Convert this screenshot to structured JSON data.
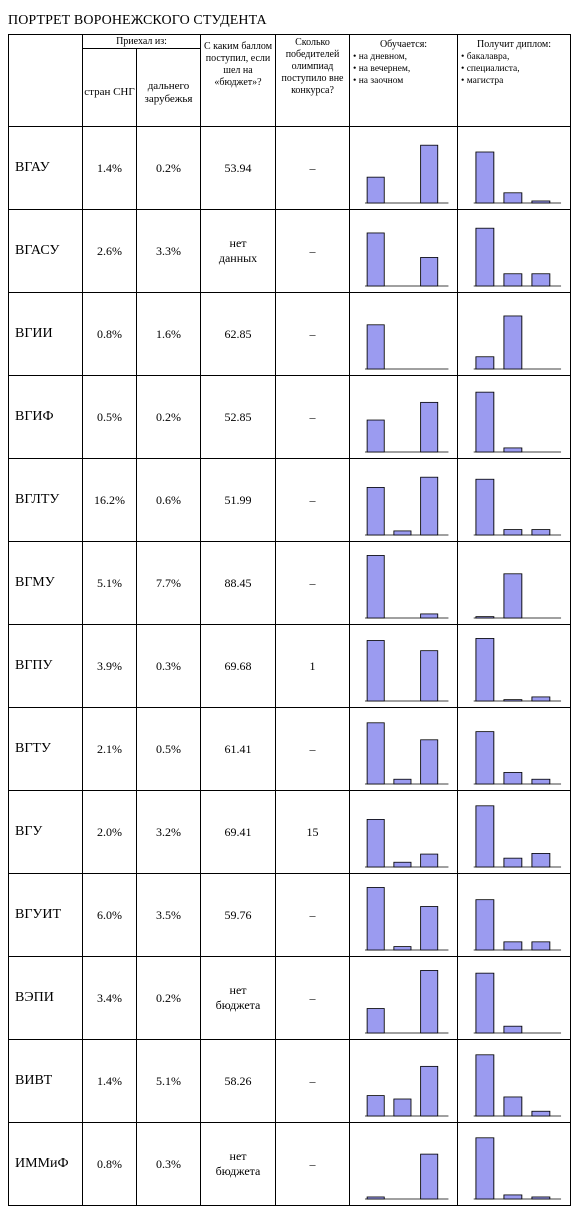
{
  "title": "ПОРТРЕТ ВОРОНЕЖСКОГО СТУДЕНТА",
  "headers": {
    "arrived_from": "Приехал из:",
    "cis": "стран СНГ",
    "far_abroad": "дальнего зарубежья",
    "score": "С каким баллом поступил, если шел на «бюджет»?",
    "olympiad": "Сколько победителей олимпиад поступило вне конкурса?",
    "study_form": {
      "caption": "Обучается:",
      "items": [
        "• на дневном,",
        "• на вечернем,",
        "• на заочном"
      ]
    },
    "diploma": {
      "caption": "Получит диплом:",
      "items": [
        "• бакалавра,",
        "• специалиста,",
        "• магистра"
      ]
    }
  },
  "colors": {
    "bar_fill": "#9b9bf0",
    "bar_stroke": "#000000"
  },
  "rows": [
    {
      "name": "ВГАУ",
      "cis": "1.4%",
      "far": "0.2%",
      "score": "53.94",
      "olymp": "–",
      "study": [
        0.38,
        0,
        0.85
      ],
      "diploma": [
        0.75,
        0.15,
        0.03
      ]
    },
    {
      "name": "ВГАСУ",
      "cis": "2.6%",
      "far": "3.3%",
      "score": "нет\nданных",
      "olymp": "–",
      "study": [
        0.78,
        0,
        0.42
      ],
      "diploma": [
        0.85,
        0.18,
        0.18
      ]
    },
    {
      "name": "ВГИИ",
      "cis": "0.8%",
      "far": "1.6%",
      "score": "62.85",
      "olymp": "–",
      "study": [
        0.65,
        0,
        0
      ],
      "diploma": [
        0.18,
        0.78,
        0
      ]
    },
    {
      "name": "ВГИФ",
      "cis": "0.5%",
      "far": "0.2%",
      "score": "52.85",
      "olymp": "–",
      "study": [
        0.47,
        0,
        0.73
      ],
      "diploma": [
        0.88,
        0.06,
        0
      ]
    },
    {
      "name": "ВГЛТУ",
      "cis": "16.2%",
      "far": "0.6%",
      "score": "51.99",
      "olymp": "–",
      "study": [
        0.7,
        0.06,
        0.85
      ],
      "diploma": [
        0.82,
        0.08,
        0.08
      ]
    },
    {
      "name": "ВГМУ",
      "cis": "5.1%",
      "far": "7.7%",
      "score": "88.45",
      "olymp": "–",
      "study": [
        0.92,
        0,
        0.06
      ],
      "diploma": [
        0.02,
        0.65,
        0
      ]
    },
    {
      "name": "ВГПУ",
      "cis": "3.9%",
      "far": "0.3%",
      "score": "69.68",
      "olymp": "1",
      "study": [
        0.89,
        0,
        0.74
      ],
      "diploma": [
        0.92,
        0.02,
        0.06
      ]
    },
    {
      "name": "ВГТУ",
      "cis": "2.1%",
      "far": "0.5%",
      "score": "61.41",
      "olymp": "–",
      "study": [
        0.9,
        0.07,
        0.65
      ],
      "diploma": [
        0.77,
        0.17,
        0.07
      ]
    },
    {
      "name": "ВГУ",
      "cis": "2.0%",
      "far": "3.2%",
      "score": "69.41",
      "olymp": "15",
      "study": [
        0.7,
        0.07,
        0.19
      ],
      "diploma": [
        0.9,
        0.13,
        0.2
      ]
    },
    {
      "name": "ВГУИТ",
      "cis": "6.0%",
      "far": "3.5%",
      "score": "59.76",
      "olymp": "–",
      "study": [
        0.92,
        0.05,
        0.64
      ],
      "diploma": [
        0.74,
        0.12,
        0.12
      ]
    },
    {
      "name": "ВЭПИ",
      "cis": "3.4%",
      "far": "0.2%",
      "score": "нет\nбюджета",
      "olymp": "–",
      "study": [
        0.36,
        0,
        0.92
      ],
      "diploma": [
        0.88,
        0.1,
        0
      ]
    },
    {
      "name": "ВИВТ",
      "cis": "1.4%",
      "far": "5.1%",
      "score": "58.26",
      "olymp": "–",
      "study": [
        0.3,
        0.25,
        0.73
      ],
      "diploma": [
        0.9,
        0.28,
        0.07
      ]
    },
    {
      "name": "ИММиФ",
      "cis": "0.8%",
      "far": "0.3%",
      "score": "нет\nбюджета",
      "olymp": "–",
      "study": [
        0.03,
        0,
        0.66
      ],
      "diploma": [
        0.9,
        0.06,
        0.03
      ]
    }
  ]
}
